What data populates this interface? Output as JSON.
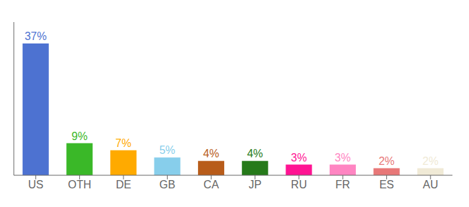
{
  "chart_data": {
    "type": "bar",
    "categories": [
      "US",
      "OTH",
      "DE",
      "GB",
      "CA",
      "JP",
      "RU",
      "FR",
      "ES",
      "AU"
    ],
    "values": [
      37,
      9,
      7,
      5,
      4,
      4,
      3,
      3,
      2,
      2
    ],
    "value_labels": [
      "37%",
      "9%",
      "7%",
      "5%",
      "4%",
      "4%",
      "3%",
      "3%",
      "2%",
      "2%"
    ],
    "colors": [
      "#4d72d1",
      "#3ab828",
      "#ffaa00",
      "#87ceeb",
      "#b85c1a",
      "#267a1a",
      "#ff1493",
      "#ff85c2",
      "#e87878",
      "#f0ead6"
    ],
    "ylim": [
      0,
      43
    ],
    "data_labels": true,
    "tick_labels": "x"
  }
}
